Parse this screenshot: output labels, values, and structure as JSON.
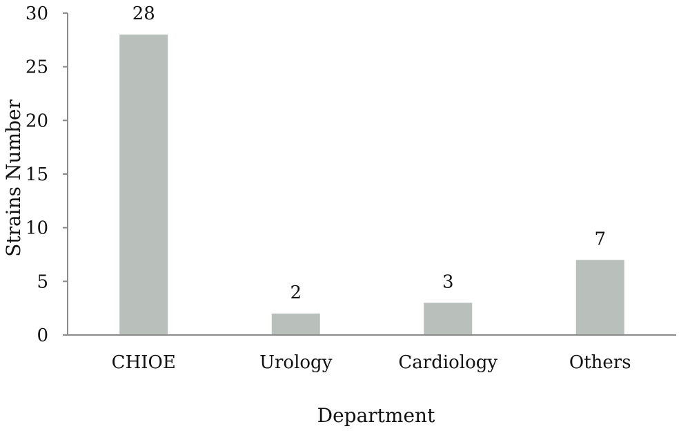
{
  "chart_data": {
    "type": "bar",
    "categories": [
      "CHIOE",
      "Urology",
      "Cardiology",
      "Others"
    ],
    "values": [
      28,
      2,
      3,
      7
    ],
    "data_labels": [
      "28",
      "2",
      "3",
      "7"
    ],
    "title": "",
    "xlabel": "Department",
    "ylabel": "Strains Number",
    "ylim": [
      0,
      30
    ],
    "yticks": [
      0,
      5,
      10,
      15,
      20,
      25,
      30
    ],
    "ytick_labels": [
      "0",
      "5",
      "10",
      "15",
      "20",
      "25",
      "30"
    ],
    "grid": false,
    "legend": "none",
    "bar_color": "#b9bfbb",
    "axis_color": "#8a8a8a"
  }
}
